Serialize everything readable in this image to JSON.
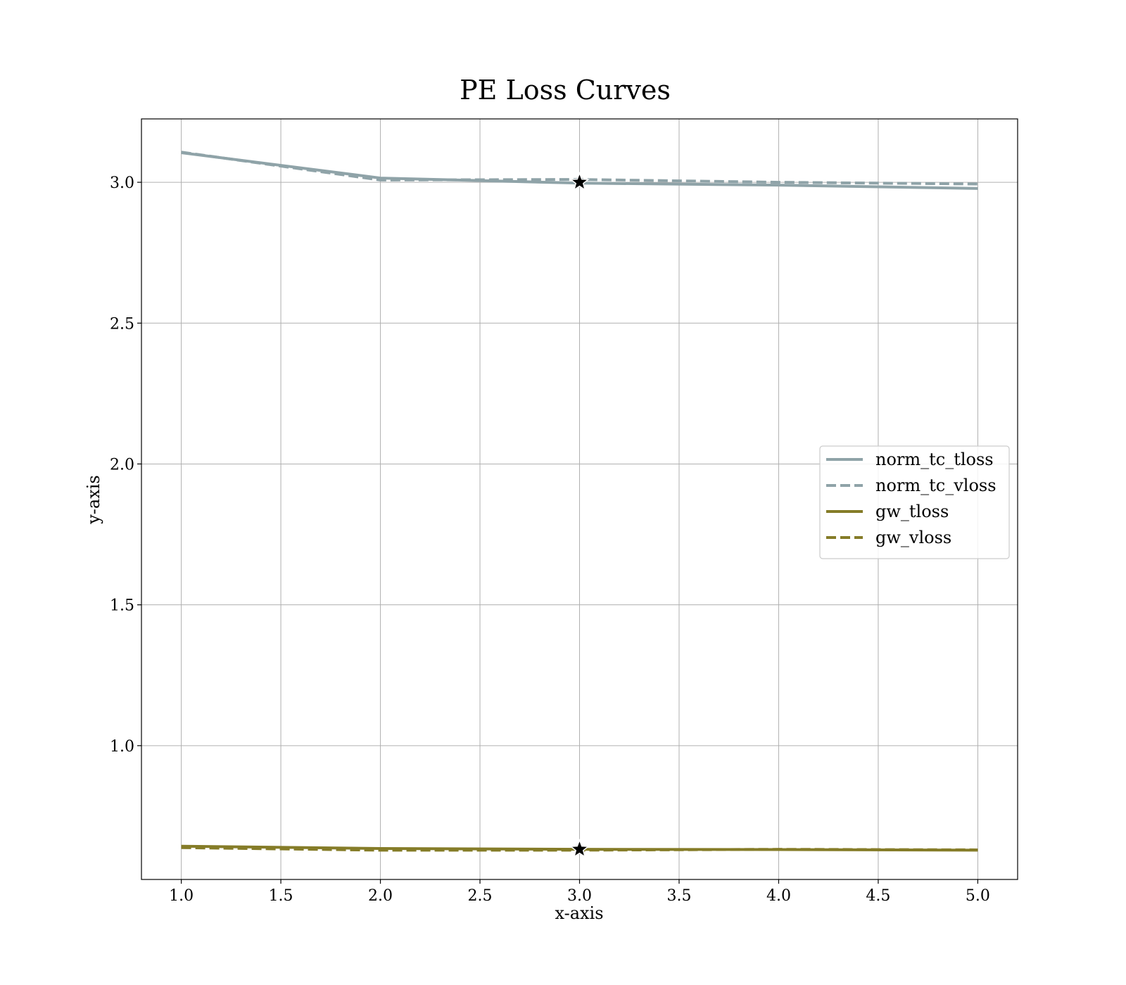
{
  "chart_data": {
    "type": "line",
    "title": "PE Loss Curves",
    "xlabel": "x-axis",
    "ylabel": "y-axis",
    "xlim": [
      0.8,
      5.2
    ],
    "ylim": [
      0.525,
      3.225
    ],
    "xticks": [
      1.0,
      1.5,
      2.0,
      2.5,
      3.0,
      3.5,
      4.0,
      4.5,
      5.0
    ],
    "xtick_labels": [
      "1.0",
      "1.5",
      "2.0",
      "2.5",
      "3.0",
      "3.5",
      "4.0",
      "4.5",
      "5.0"
    ],
    "yticks": [
      1.0,
      1.5,
      2.0,
      2.5,
      3.0
    ],
    "ytick_labels": [
      "1.0",
      "1.5",
      "2.0",
      "2.5",
      "3.0"
    ],
    "grid": true,
    "legend_position": "center-right",
    "x": [
      1,
      2,
      3,
      4,
      5
    ],
    "series": [
      {
        "name": "norm_tc_tloss",
        "values": [
          3.105,
          3.015,
          2.997,
          2.99,
          2.978
        ],
        "color": "#8fa3a8",
        "dash": false
      },
      {
        "name": "norm_tc_vloss",
        "values": [
          3.107,
          3.008,
          3.01,
          3.0,
          2.994
        ],
        "color": "#8fa3a8",
        "dash": true
      },
      {
        "name": "gw_tloss",
        "values": [
          0.643,
          0.635,
          0.632,
          0.631,
          0.629
        ],
        "color": "#857c28",
        "dash": false
      },
      {
        "name": "gw_vloss",
        "values": [
          0.638,
          0.629,
          0.629,
          0.632,
          0.63
        ],
        "color": "#857c28",
        "dash": true
      }
    ],
    "markers": [
      {
        "x": 3.0,
        "y": 3.0,
        "shape": "star"
      },
      {
        "x": 3.0,
        "y": 0.632,
        "shape": "star"
      }
    ]
  }
}
